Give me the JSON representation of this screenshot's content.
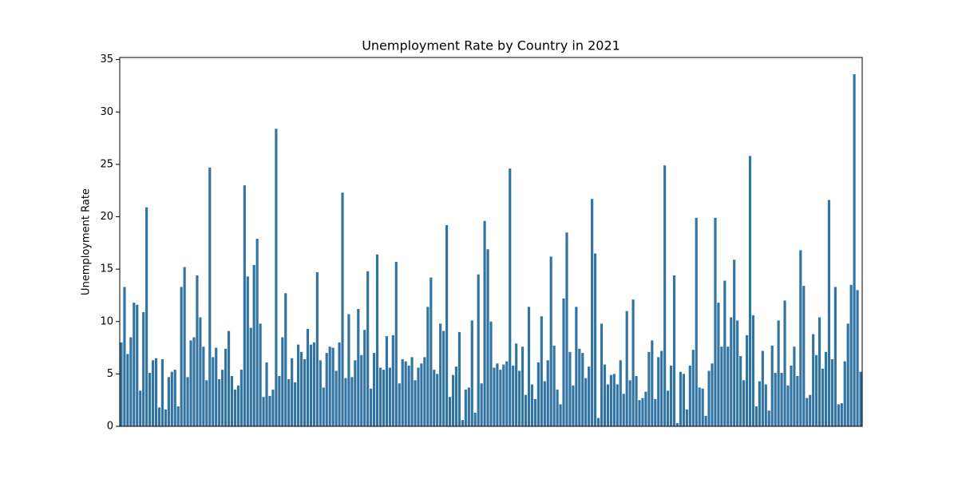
{
  "chart_data": {
    "type": "bar",
    "title": "Unemployment Rate by Country in 2021",
    "ylabel": "Unemployment Rate",
    "color": "#3274a1",
    "categories": [
      null,
      null,
      null,
      null,
      null,
      null,
      null,
      null,
      null,
      null,
      null,
      null,
      null,
      null,
      null,
      null,
      null,
      null,
      null,
      null,
      null,
      null,
      null,
      null,
      null,
      null,
      null,
      null,
      null,
      null,
      null,
      null,
      null,
      null,
      null,
      null,
      null,
      null,
      null,
      null,
      null,
      null,
      null,
      null,
      null,
      null,
      null,
      null,
      null,
      null,
      null,
      null,
      null,
      null,
      null,
      null,
      null,
      null,
      null,
      null,
      null,
      null,
      null,
      null,
      null,
      null,
      null,
      null,
      null,
      null,
      null,
      null,
      null,
      null,
      null,
      null,
      null,
      null,
      null,
      null,
      null,
      null,
      null,
      null,
      null,
      null,
      null,
      null,
      null,
      null,
      null,
      null,
      null,
      null,
      null,
      null,
      null,
      null,
      null,
      null,
      null,
      null,
      null,
      null,
      null,
      null,
      null,
      null,
      null,
      null,
      null,
      null,
      null,
      null,
      null,
      null,
      null,
      null,
      null,
      null,
      null,
      null,
      null,
      null,
      null,
      null,
      null,
      null,
      null,
      null,
      null,
      null,
      null,
      null,
      null,
      null,
      null,
      null,
      null,
      null,
      null,
      null,
      null,
      null,
      null,
      null,
      null,
      null,
      null,
      null,
      null,
      null,
      null,
      null,
      null,
      null,
      null,
      null,
      null,
      null,
      null,
      null,
      null,
      null,
      null,
      null,
      null,
      null,
      null,
      null,
      null,
      null,
      null,
      null,
      null,
      null,
      null,
      null,
      null,
      null,
      null,
      null,
      null,
      null,
      null,
      null,
      null,
      null,
      null,
      null,
      null,
      null,
      null,
      null,
      null,
      null,
      null,
      null,
      null,
      null,
      null,
      null,
      null,
      null,
      null,
      null,
      null,
      null,
      null,
      null,
      null,
      null,
      null,
      null,
      null,
      null,
      null,
      null,
      null,
      null,
      null,
      null,
      null,
      null,
      null,
      null,
      null,
      null,
      null,
      null,
      null,
      null,
      null,
      null,
      null
    ],
    "values": [
      8.0,
      13.3,
      6.9,
      8.5,
      11.8,
      11.6,
      3.4,
      10.9,
      20.9,
      5.1,
      6.3,
      6.5,
      1.8,
      6.4,
      1.6,
      4.7,
      5.2,
      5.4,
      1.9,
      13.3,
      15.2,
      4.7,
      8.2,
      8.5,
      14.4,
      10.4,
      7.6,
      4.4,
      24.7,
      6.6,
      7.5,
      4.5,
      5.4,
      7.4,
      9.1,
      4.8,
      3.5,
      3.9,
      5.4,
      23.0,
      14.3,
      9.4,
      15.4,
      17.9,
      9.8,
      2.8,
      6.1,
      2.9,
      3.5,
      28.4,
      4.8,
      8.5,
      12.7,
      4.5,
      6.5,
      4.2,
      7.8,
      7.1,
      6.4,
      9.3,
      7.8,
      8.0,
      14.7,
      6.3,
      3.7,
      7.0,
      7.6,
      7.5,
      5.3,
      8.0,
      22.3,
      4.6,
      10.7,
      4.7,
      6.3,
      11.2,
      6.8,
      9.2,
      14.8,
      3.6,
      7.0,
      16.4,
      5.6,
      5.4,
      8.6,
      5.6,
      8.7,
      15.7,
      4.1,
      6.4,
      6.2,
      5.8,
      6.6,
      4.4,
      5.6,
      6.0,
      6.6,
      11.4,
      14.2,
      5.4,
      5.0,
      9.8,
      9.1,
      19.2,
      2.8,
      4.9,
      5.7,
      9.0,
      0.6,
      3.5,
      3.7,
      10.1,
      1.3,
      14.5,
      4.1,
      19.6,
      16.9,
      10.0,
      5.6,
      6.0,
      5.4,
      5.9,
      6.2,
      24.6,
      5.8,
      7.9,
      5.3,
      7.6,
      3.0,
      11.4,
      4.0,
      2.6,
      6.1,
      10.5,
      4.3,
      6.3,
      16.2,
      7.7,
      3.5,
      2.1,
      12.2,
      18.5,
      7.1,
      3.9,
      11.4,
      7.4,
      7.0,
      4.6,
      5.7,
      21.7,
      16.5,
      0.8,
      9.8,
      5.9,
      4.0,
      4.9,
      5.0,
      4.0,
      6.3,
      3.1,
      11.0,
      4.4,
      12.1,
      4.8,
      2.5,
      2.7,
      3.3,
      7.1,
      8.2,
      2.6,
      6.6,
      7.2,
      24.9,
      3.4,
      5.8,
      14.4,
      0.3,
      5.2,
      5.0,
      1.6,
      5.8,
      7.3,
      19.9,
      3.7,
      3.6,
      1.0,
      5.3,
      6.0,
      19.9,
      11.8,
      7.6,
      13.9,
      7.6,
      10.4,
      15.9,
      10.1,
      6.7,
      4.4,
      8.7,
      25.8,
      10.6,
      1.9,
      4.3,
      7.2,
      4.0,
      1.5,
      7.7,
      5.1,
      10.1,
      5.1,
      12.0,
      3.9,
      5.8,
      7.6,
      4.8,
      16.8,
      13.4,
      2.7,
      3.0,
      8.8,
      6.8,
      10.4,
      5.5,
      7.1,
      21.6,
      6.4,
      13.3,
      2.1,
      2.2,
      6.2,
      9.8,
      13.5,
      33.6,
      13.0,
      5.2
    ],
    "ylim": [
      0,
      35.2
    ],
    "yticks": [
      0,
      5,
      10,
      15,
      20,
      25,
      30,
      35
    ],
    "grid": false
  }
}
